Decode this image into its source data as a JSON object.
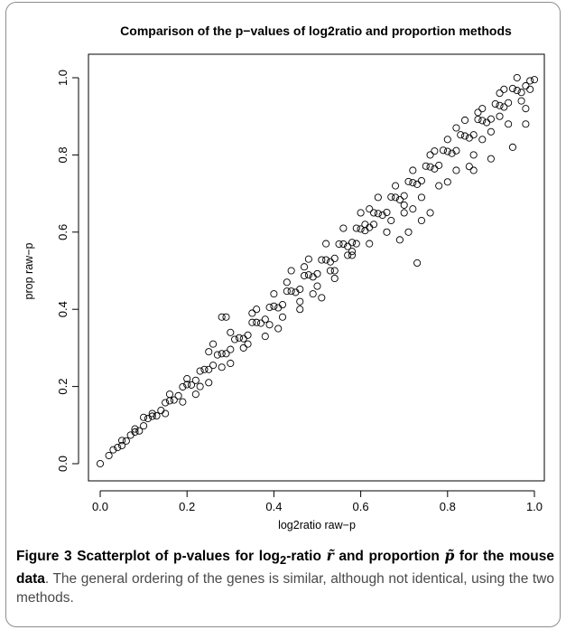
{
  "figure": {
    "caption_lead_1": "Figure 3 Scatterplot of p-values for log",
    "caption_lead_sub": "2",
    "caption_lead_2": "-ratio ",
    "symbol_r": "r̃",
    "caption_lead_3": " and proportion ",
    "symbol_p": "p̃",
    "caption_lead_4": " for the mouse data",
    "caption_body": ". The general ordering of the genes is similar, although not identical, using the two methods."
  },
  "chart_data": {
    "type": "scatter",
    "title": "Comparison of the p−values of log2ratio and proportion methods",
    "xlabel": "log2ratio raw−p",
    "ylabel": "prop raw−p",
    "xlim": [
      0.0,
      1.0
    ],
    "ylim": [
      0.0,
      1.0
    ],
    "xticks": [
      "0.0",
      "0.2",
      "0.4",
      "0.6",
      "0.8",
      "1.0"
    ],
    "yticks": [
      "0.0",
      "0.2",
      "0.4",
      "0.6",
      "0.8",
      "1.0"
    ],
    "marker": "open-circle",
    "grid": false,
    "points": [
      [
        0.0,
        0.0
      ],
      [
        0.02,
        0.021
      ],
      [
        0.04,
        0.042
      ],
      [
        0.06,
        0.059
      ],
      [
        0.08,
        0.082
      ],
      [
        0.1,
        0.098
      ],
      [
        0.12,
        0.123
      ],
      [
        0.14,
        0.138
      ],
      [
        0.16,
        0.163
      ],
      [
        0.18,
        0.176
      ],
      [
        0.2,
        0.205
      ],
      [
        0.22,
        0.216
      ],
      [
        0.24,
        0.244
      ],
      [
        0.26,
        0.255
      ],
      [
        0.28,
        0.285
      ],
      [
        0.3,
        0.296
      ],
      [
        0.32,
        0.326
      ],
      [
        0.34,
        0.333
      ],
      [
        0.36,
        0.366
      ],
      [
        0.38,
        0.374
      ],
      [
        0.4,
        0.408
      ],
      [
        0.42,
        0.412
      ],
      [
        0.44,
        0.447
      ],
      [
        0.46,
        0.452
      ],
      [
        0.48,
        0.489
      ],
      [
        0.5,
        0.492
      ],
      [
        0.52,
        0.528
      ],
      [
        0.54,
        0.532
      ],
      [
        0.56,
        0.569
      ],
      [
        0.58,
        0.573
      ],
      [
        0.6,
        0.608
      ],
      [
        0.62,
        0.612
      ],
      [
        0.64,
        0.648
      ],
      [
        0.66,
        0.651
      ],
      [
        0.68,
        0.69
      ],
      [
        0.7,
        0.694
      ],
      [
        0.72,
        0.728
      ],
      [
        0.74,
        0.733
      ],
      [
        0.76,
        0.769
      ],
      [
        0.78,
        0.773
      ],
      [
        0.8,
        0.809
      ],
      [
        0.82,
        0.811
      ],
      [
        0.84,
        0.849
      ],
      [
        0.86,
        0.852
      ],
      [
        0.88,
        0.889
      ],
      [
        0.9,
        0.893
      ],
      [
        0.92,
        0.928
      ],
      [
        0.94,
        0.935
      ],
      [
        0.96,
        0.967
      ],
      [
        0.98,
        0.979
      ],
      [
        1.0,
        0.995
      ],
      [
        0.03,
        0.036
      ],
      [
        0.05,
        0.047
      ],
      [
        0.07,
        0.074
      ],
      [
        0.09,
        0.085
      ],
      [
        0.11,
        0.117
      ],
      [
        0.13,
        0.124
      ],
      [
        0.15,
        0.158
      ],
      [
        0.17,
        0.165
      ],
      [
        0.19,
        0.199
      ],
      [
        0.21,
        0.204
      ],
      [
        0.23,
        0.24
      ],
      [
        0.25,
        0.244
      ],
      [
        0.27,
        0.282
      ],
      [
        0.29,
        0.285
      ],
      [
        0.31,
        0.322
      ],
      [
        0.33,
        0.324
      ],
      [
        0.35,
        0.366
      ],
      [
        0.37,
        0.364
      ],
      [
        0.39,
        0.405
      ],
      [
        0.41,
        0.404
      ],
      [
        0.43,
        0.447
      ],
      [
        0.45,
        0.444
      ],
      [
        0.47,
        0.487
      ],
      [
        0.49,
        0.484
      ],
      [
        0.51,
        0.528
      ],
      [
        0.53,
        0.523
      ],
      [
        0.55,
        0.569
      ],
      [
        0.57,
        0.563
      ],
      [
        0.59,
        0.61
      ],
      [
        0.61,
        0.604
      ],
      [
        0.63,
        0.65
      ],
      [
        0.65,
        0.644
      ],
      [
        0.67,
        0.691
      ],
      [
        0.69,
        0.684
      ],
      [
        0.71,
        0.731
      ],
      [
        0.73,
        0.724
      ],
      [
        0.75,
        0.771
      ],
      [
        0.77,
        0.764
      ],
      [
        0.79,
        0.812
      ],
      [
        0.81,
        0.804
      ],
      [
        0.83,
        0.852
      ],
      [
        0.85,
        0.844
      ],
      [
        0.87,
        0.892
      ],
      [
        0.89,
        0.884
      ],
      [
        0.91,
        0.932
      ],
      [
        0.93,
        0.924
      ],
      [
        0.95,
        0.972
      ],
      [
        0.97,
        0.962
      ],
      [
        0.99,
        0.992
      ],
      [
        0.1,
        0.12
      ],
      [
        0.15,
        0.13
      ],
      [
        0.2,
        0.22
      ],
      [
        0.22,
        0.18
      ],
      [
        0.25,
        0.29
      ],
      [
        0.28,
        0.25
      ],
      [
        0.3,
        0.34
      ],
      [
        0.29,
        0.38
      ],
      [
        0.33,
        0.3
      ],
      [
        0.35,
        0.39
      ],
      [
        0.38,
        0.33
      ],
      [
        0.4,
        0.44
      ],
      [
        0.42,
        0.38
      ],
      [
        0.44,
        0.5
      ],
      [
        0.46,
        0.42
      ],
      [
        0.48,
        0.53
      ],
      [
        0.5,
        0.46
      ],
      [
        0.52,
        0.57
      ],
      [
        0.54,
        0.5
      ],
      [
        0.56,
        0.61
      ],
      [
        0.58,
        0.54
      ],
      [
        0.6,
        0.65
      ],
      [
        0.62,
        0.57
      ],
      [
        0.64,
        0.69
      ],
      [
        0.66,
        0.6
      ],
      [
        0.68,
        0.72
      ],
      [
        0.7,
        0.65
      ],
      [
        0.72,
        0.76
      ],
      [
        0.74,
        0.69
      ],
      [
        0.76,
        0.8
      ],
      [
        0.78,
        0.72
      ],
      [
        0.8,
        0.84
      ],
      [
        0.82,
        0.76
      ],
      [
        0.84,
        0.89
      ],
      [
        0.86,
        0.8
      ],
      [
        0.88,
        0.92
      ],
      [
        0.9,
        0.86
      ],
      [
        0.92,
        0.96
      ],
      [
        0.94,
        0.88
      ],
      [
        0.96,
        1.0
      ],
      [
        0.98,
        0.92
      ],
      [
        0.95,
        0.82
      ],
      [
        0.98,
        0.88
      ],
      [
        0.9,
        0.79
      ],
      [
        0.85,
        0.77
      ],
      [
        0.86,
        0.76
      ],
      [
        0.73,
        0.52
      ],
      [
        0.72,
        0.66
      ],
      [
        0.74,
        0.63
      ],
      [
        0.76,
        0.65
      ],
      [
        0.71,
        0.6
      ],
      [
        0.57,
        0.54
      ],
      [
        0.58,
        0.55
      ],
      [
        0.61,
        0.62
      ],
      [
        0.46,
        0.4
      ],
      [
        0.49,
        0.44
      ],
      [
        0.51,
        0.43
      ],
      [
        0.54,
        0.48
      ],
      [
        0.3,
        0.26
      ],
      [
        0.28,
        0.38
      ],
      [
        0.25,
        0.21
      ],
      [
        0.23,
        0.2
      ],
      [
        0.36,
        0.4
      ],
      [
        0.41,
        0.35
      ],
      [
        0.19,
        0.16
      ],
      [
        0.16,
        0.18
      ],
      [
        0.69,
        0.58
      ],
      [
        0.7,
        0.67
      ],
      [
        0.8,
        0.73
      ],
      [
        0.82,
        0.87
      ],
      [
        0.87,
        0.91
      ],
      [
        0.93,
        0.97
      ],
      [
        0.97,
        0.94
      ],
      [
        0.99,
        0.97
      ],
      [
        0.62,
        0.66
      ],
      [
        0.43,
        0.47
      ],
      [
        0.39,
        0.36
      ],
      [
        0.26,
        0.31
      ],
      [
        0.12,
        0.13
      ],
      [
        0.08,
        0.09
      ],
      [
        0.05,
        0.06
      ],
      [
        0.34,
        0.31
      ],
      [
        0.47,
        0.51
      ],
      [
        0.53,
        0.5
      ],
      [
        0.67,
        0.63
      ],
      [
        0.77,
        0.81
      ],
      [
        0.88,
        0.84
      ],
      [
        0.92,
        0.9
      ],
      [
        0.63,
        0.62
      ],
      [
        0.59,
        0.57
      ]
    ]
  }
}
